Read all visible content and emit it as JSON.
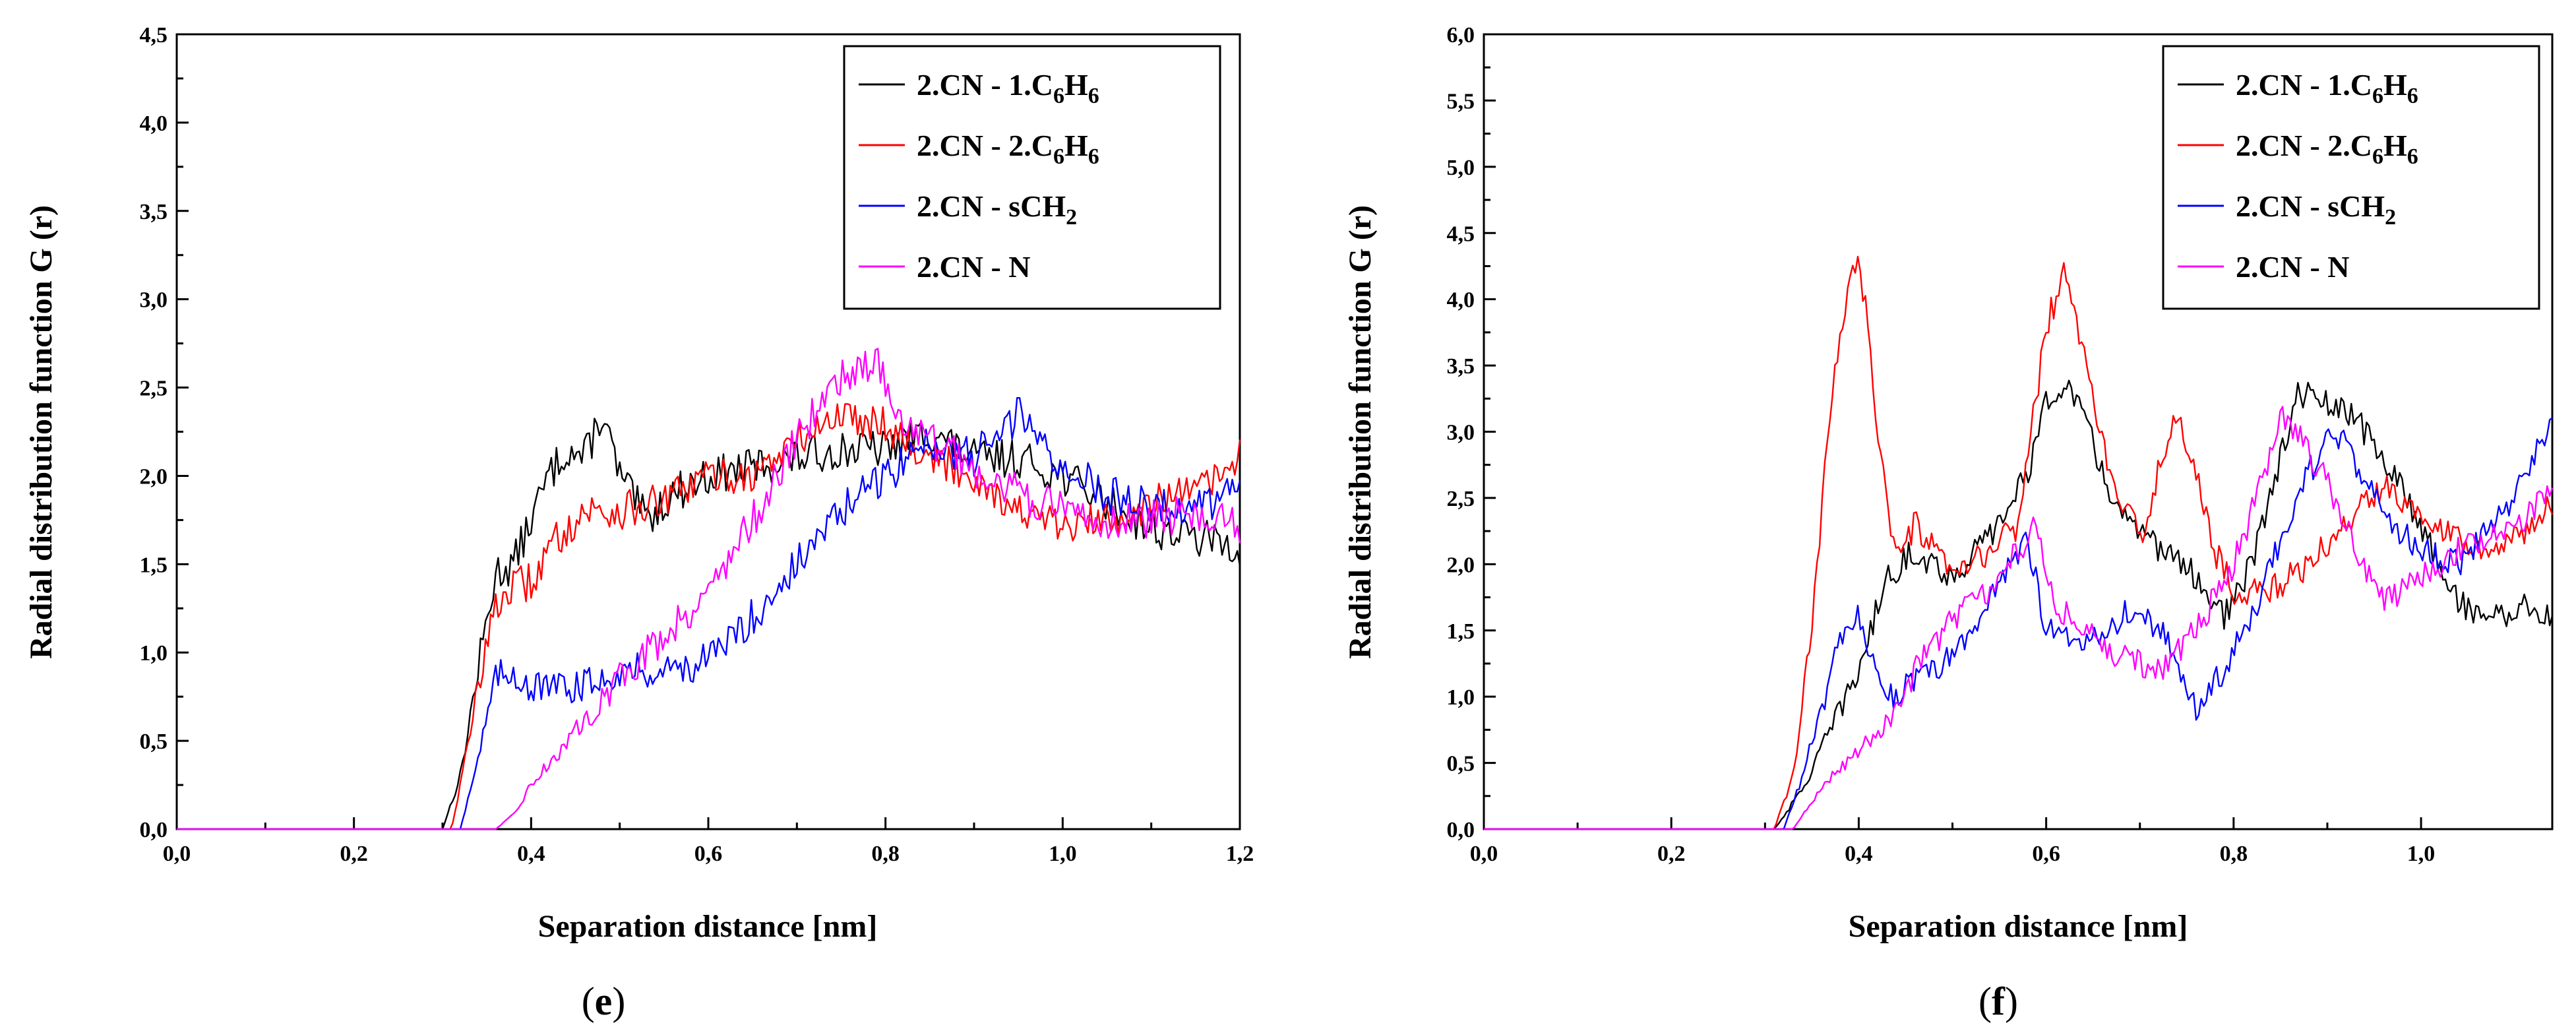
{
  "chart_data": [
    {
      "type": "line",
      "panel_label": "(e)",
      "panel_letter": "e",
      "xlabel": "Separation distance [nm]",
      "ylabel": "Radial distribution function G (r)",
      "xlim": [
        0.0,
        1.2
      ],
      "ylim": [
        0.0,
        4.5
      ],
      "xticks": [
        "0,0",
        "0,2",
        "0,4",
        "0,6",
        "0,8",
        "1,0",
        "1,2"
      ],
      "yticks": [
        "0,0",
        "0,5",
        "1,0",
        "1,5",
        "2,0",
        "2,5",
        "3,0",
        "3,5",
        "4,0",
        "4,5"
      ],
      "legend_position": "top-right",
      "series": [
        {
          "name": "2.CN - 1.C6H6",
          "label_main": "2.CN - 1.C",
          "sub1": "6",
          "mid": "H",
          "sub2": "6",
          "color": "#000000",
          "x": [
            0.0,
            0.3,
            0.32,
            0.34,
            0.36,
            0.38,
            0.4,
            0.42,
            0.44,
            0.46,
            0.48,
            0.5,
            0.53,
            0.56,
            0.6,
            0.65,
            0.7,
            0.75,
            0.8,
            0.85,
            0.9,
            0.95,
            1.0,
            1.05,
            1.1,
            1.15,
            1.2
          ],
          "y": [
            0.0,
            0.0,
            0.3,
            0.9,
            1.45,
            1.5,
            1.75,
            2.0,
            2.15,
            2.1,
            2.35,
            2.0,
            1.75,
            1.9,
            2.0,
            2.05,
            2.1,
            2.15,
            2.15,
            2.25,
            2.1,
            2.1,
            2.0,
            1.85,
            1.7,
            1.65,
            1.6
          ]
        },
        {
          "name": "2.CN - 2.C6H6",
          "label_main": "2.CN - 2.C",
          "sub1": "6",
          "mid": "H",
          "sub2": "6",
          "color": "#ff0000",
          "x": [
            0.0,
            0.31,
            0.33,
            0.35,
            0.37,
            0.4,
            0.43,
            0.46,
            0.5,
            0.55,
            0.6,
            0.65,
            0.7,
            0.75,
            0.8,
            0.85,
            0.9,
            0.95,
            1.0,
            1.05,
            1.1,
            1.15,
            1.2
          ],
          "y": [
            0.0,
            0.0,
            0.5,
            1.1,
            1.35,
            1.4,
            1.65,
            1.8,
            1.8,
            1.85,
            2.0,
            2.0,
            2.2,
            2.35,
            2.3,
            2.1,
            2.0,
            1.8,
            1.7,
            1.75,
            1.85,
            1.9,
            2.1
          ]
        },
        {
          "name": "2.CN - sCH2",
          "label_main": "2.CN - sCH",
          "sub1": "2",
          "mid": "",
          "sub2": "",
          "color": "#0000ff",
          "x": [
            0.0,
            0.32,
            0.34,
            0.36,
            0.38,
            0.4,
            0.45,
            0.5,
            0.55,
            0.6,
            0.65,
            0.7,
            0.75,
            0.8,
            0.85,
            0.9,
            0.95,
            1.0,
            1.05,
            1.1,
            1.15,
            1.2
          ],
          "y": [
            0.0,
            0.0,
            0.4,
            0.85,
            0.9,
            0.8,
            0.8,
            0.9,
            0.9,
            0.95,
            1.2,
            1.5,
            1.8,
            2.0,
            2.2,
            2.1,
            2.35,
            2.05,
            1.9,
            1.85,
            1.8,
            1.95
          ]
        },
        {
          "name": "2.CN - N",
          "label_main": "2.CN - N",
          "sub1": "",
          "mid": "",
          "sub2": "",
          "color": "#ff00ff",
          "x": [
            0.0,
            0.36,
            0.38,
            0.4,
            0.45,
            0.5,
            0.55,
            0.6,
            0.65,
            0.7,
            0.73,
            0.76,
            0.79,
            0.82,
            0.85,
            0.9,
            0.95,
            1.0,
            1.05,
            1.1,
            1.15,
            1.2
          ],
          "y": [
            0.0,
            0.0,
            0.08,
            0.25,
            0.55,
            0.85,
            1.1,
            1.35,
            1.75,
            2.2,
            2.45,
            2.6,
            2.65,
            2.3,
            2.2,
            2.05,
            1.9,
            1.8,
            1.75,
            1.75,
            1.8,
            1.7
          ]
        }
      ]
    },
    {
      "type": "line",
      "panel_label": "(f)",
      "panel_letter": "f",
      "xlabel": "Separation distance [nm]",
      "ylabel": "Radial distribution function G (r)",
      "xlim": [
        0.0,
        1.14
      ],
      "ylim": [
        0.0,
        6.0
      ],
      "xticks": [
        "0,0",
        "0,2",
        "0,4",
        "0,6",
        "0,8",
        "1,0"
      ],
      "yticks": [
        "0,0",
        "0,5",
        "1,0",
        "1,5",
        "2,0",
        "2,5",
        "3,0",
        "3,5",
        "4,0",
        "4,5",
        "5,0",
        "5,5",
        "6,0"
      ],
      "legend_position": "top-right",
      "series": [
        {
          "name": "2.CN - 1.C6H6",
          "label_main": "2.CN - 1.C",
          "sub1": "6",
          "mid": "H",
          "sub2": "6",
          "color": "#000000",
          "x": [
            0.0,
            0.31,
            0.34,
            0.36,
            0.38,
            0.4,
            0.43,
            0.46,
            0.5,
            0.55,
            0.58,
            0.6,
            0.62,
            0.64,
            0.67,
            0.7,
            0.73,
            0.76,
            0.79,
            0.82,
            0.85,
            0.87,
            0.9,
            0.93,
            0.96,
            1.0,
            1.04,
            1.08,
            1.12,
            1.13
          ],
          "y": [
            0.0,
            0.0,
            0.3,
            0.6,
            0.9,
            1.2,
            1.9,
            2.1,
            1.9,
            2.3,
            2.7,
            3.2,
            3.4,
            3.1,
            2.5,
            2.2,
            2.1,
            1.9,
            1.6,
            2.0,
            2.8,
            3.3,
            3.2,
            3.1,
            2.8,
            2.3,
            1.7,
            1.6,
            1.7,
            1.6
          ]
        },
        {
          "name": "2.CN - 2.C6H6",
          "label_main": "2.CN - 2.C",
          "sub1": "6",
          "mid": "H",
          "sub2": "6",
          "color": "#ff0000",
          "x": [
            0.0,
            0.31,
            0.33,
            0.35,
            0.37,
            0.39,
            0.4,
            0.41,
            0.42,
            0.44,
            0.46,
            0.5,
            0.54,
            0.57,
            0.6,
            0.62,
            0.64,
            0.67,
            0.7,
            0.72,
            0.74,
            0.76,
            0.78,
            0.8,
            0.84,
            0.88,
            0.92,
            0.96,
            1.0,
            1.04,
            1.08,
            1.12,
            1.13
          ],
          "y": [
            0.0,
            0.0,
            0.4,
            1.5,
            3.2,
            4.2,
            4.3,
            3.8,
            3.0,
            2.0,
            2.3,
            1.9,
            2.1,
            2.3,
            3.8,
            4.2,
            3.6,
            2.6,
            2.2,
            2.7,
            3.1,
            2.7,
            2.1,
            1.8,
            1.8,
            2.0,
            2.3,
            2.6,
            2.4,
            2.2,
            2.1,
            2.3,
            2.4
          ]
        },
        {
          "name": "2.CN - sCH2",
          "label_main": "2.CN - sCH",
          "sub1": "2",
          "mid": "",
          "sub2": "",
          "color": "#0000ff",
          "x": [
            0.0,
            0.32,
            0.34,
            0.36,
            0.38,
            0.4,
            0.43,
            0.46,
            0.5,
            0.53,
            0.56,
            0.58,
            0.6,
            0.63,
            0.66,
            0.7,
            0.73,
            0.76,
            0.79,
            0.82,
            0.85,
            0.88,
            0.91,
            0.94,
            0.97,
            1.0,
            1.04,
            1.08,
            1.12,
            1.13
          ],
          "y": [
            0.0,
            0.0,
            0.4,
            0.9,
            1.4,
            1.6,
            1.0,
            1.1,
            1.3,
            1.6,
            2.0,
            2.2,
            1.5,
            1.4,
            1.5,
            1.7,
            1.4,
            0.9,
            1.2,
            1.6,
            2.2,
            2.7,
            3.0,
            2.6,
            2.3,
            2.1,
            2.0,
            2.3,
            2.8,
            3.0
          ]
        },
        {
          "name": "2.CN - N",
          "label_main": "2.CN - N",
          "sub1": "",
          "mid": "",
          "sub2": "",
          "color": "#ff00ff",
          "x": [
            0.0,
            0.33,
            0.35,
            0.37,
            0.4,
            0.43,
            0.46,
            0.5,
            0.54,
            0.57,
            0.59,
            0.61,
            0.64,
            0.68,
            0.72,
            0.76,
            0.8,
            0.83,
            0.85,
            0.87,
            0.9,
            0.93,
            0.96,
            1.0,
            1.04,
            1.08,
            1.12,
            1.13
          ],
          "y": [
            0.0,
            0.0,
            0.2,
            0.4,
            0.6,
            0.8,
            1.2,
            1.6,
            1.8,
            2.1,
            2.3,
            1.7,
            1.5,
            1.3,
            1.2,
            1.5,
            2.0,
            2.6,
            3.1,
            3.0,
            2.6,
            2.1,
            1.7,
            1.9,
            2.1,
            2.2,
            2.4,
            2.5
          ]
        }
      ]
    }
  ]
}
